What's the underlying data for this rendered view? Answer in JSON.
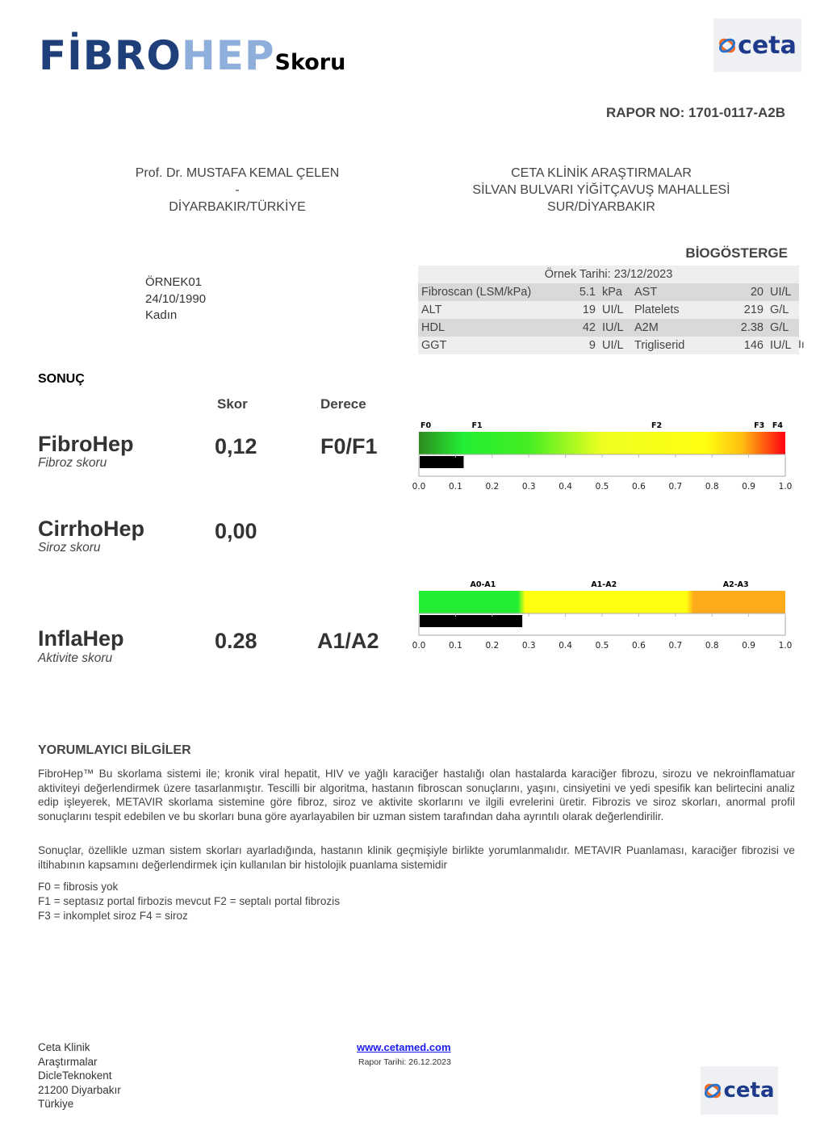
{
  "header": {
    "title_part1": "FİBRO",
    "title_part2": "HEP",
    "title_part3": "Skoru",
    "logo": "ceta",
    "report_no": "RAPOR NO: 1701-0117-A2B"
  },
  "doctor": {
    "name": "Prof. Dr. MUSTAFA KEMAL ÇELEN",
    "dash": "-",
    "location": "DİYARBAKIR/TÜRKİYE"
  },
  "clinic": {
    "line1": "CETA KLİNİK ARAŞTIRMALAR",
    "line2": "SİLVAN BULVARI YİĞİTÇAVUŞ MAHALLESİ",
    "line3": "SUR/DİYARBAKIR"
  },
  "patient": {
    "id": "ÖRNEK01",
    "dob": "24/10/1990",
    "sex": "Kadın"
  },
  "biomarkers": {
    "title": "BİOGÖSTERGE",
    "sample_date": "Örnek Tarihi: 23/12/2023",
    "stray": "Iı",
    "rows": [
      {
        "n1": "Fibroscan (LSM/kPa)",
        "v1": "5.1",
        "u1": "kPa",
        "n2": "AST",
        "v2": "20",
        "u2": "UI/L"
      },
      {
        "n1": "ALT",
        "v1": "19",
        "u1": "UI/L",
        "n2": "Platelets",
        "v2": "219",
        "u2": "G/L"
      },
      {
        "n1": "HDL",
        "v1": "42",
        "u1": "IU/L",
        "n2": "A2M",
        "v2": "2.38",
        "u2": "G/L"
      },
      {
        "n1": "GGT",
        "v1": "9",
        "u1": "UI/L",
        "n2": "Trigliserid",
        "v2": "146",
        "u2": "IU/L"
      }
    ]
  },
  "results": {
    "title": "SONUÇ",
    "col_score": "Skor",
    "col_grade": "Derece",
    "items": [
      {
        "name": "FibroHep",
        "sub": "Fibroz skoru",
        "score": "0,12",
        "grade": "F0/F1"
      },
      {
        "name": "CirrhoHep",
        "sub": "Siroz skoru",
        "score": "0,00",
        "grade": ""
      },
      {
        "name": "InflaHep",
        "sub": "Aktivite skoru",
        "score": "0.28",
        "grade": "A1/A2"
      }
    ]
  },
  "gauges": [
    {
      "value": 0.12,
      "ticks": [
        "0.0",
        "0.1",
        "0.2",
        "0.3",
        "0.4",
        "0.5",
        "0.6",
        "0.7",
        "0.8",
        "0.9",
        "1.0"
      ],
      "labels": [
        {
          "t": "F0",
          "at": 0.0
        },
        {
          "t": "F1",
          "at": 0.14
        },
        {
          "t": "F2",
          "at": 0.63
        },
        {
          "t": "F3",
          "at": 0.91
        },
        {
          "t": "F4",
          "at": 0.96
        }
      ],
      "stops": [
        [
          0,
          "#2e8b20"
        ],
        [
          0.12,
          "#22ee33"
        ],
        [
          0.3,
          "#44ee22"
        ],
        [
          0.5,
          "#eeff20"
        ],
        [
          0.78,
          "#ffff10"
        ],
        [
          0.88,
          "#ffc010"
        ],
        [
          1,
          "#ff0010"
        ]
      ]
    },
    {
      "value": 0.28,
      "ticks": [
        "0.0",
        "0.1",
        "0.2",
        "0.3",
        "0.4",
        "0.5",
        "0.6",
        "0.7",
        "0.8",
        "0.9",
        "1.0"
      ],
      "labels": [
        {
          "t": "A0-A1",
          "at": 0.175
        },
        {
          "t": "A1-A2",
          "at": 0.505
        },
        {
          "t": "A2-A3",
          "at": 0.865
        }
      ],
      "stops": [
        [
          0,
          "#22ee33"
        ],
        [
          0.27,
          "#22ee33"
        ],
        [
          0.29,
          "#ffff10"
        ],
        [
          0.73,
          "#ffff10"
        ],
        [
          0.75,
          "#ffaa18"
        ],
        [
          1,
          "#ffaa18"
        ]
      ]
    }
  ],
  "info": {
    "title": "YORUMLAYICI BİLGİLER",
    "p1": "FibroHep™ Bu skorlama sistemi ile; kronik viral hepatit, HIV ve yağlı karaciğer hastalığı olan hastalarda karaciğer fibrozu, sirozu ve nekroinflamatuar aktiviteyi değerlendirmek üzere tasarlanmıştır. Tescilli bir algoritma, hastanın fibroscan sonuçlarını, yaşını, cinsiyetini ve yedi spesifik kan belirtecini analiz edip işleyerek, METAVIR skorlama sistemine göre fibroz, siroz ve aktivite skorlarını ve ilgili evrelerini üretir. Fibrozis ve siroz skorları, anormal profil sonuçlarını tespit edebilen ve bu skorları buna göre ayarlayabilen bir uzman sistem tarafından daha ayrıntılı olarak değerlendirilir.",
    "p2": "Sonuçlar, özellikle uzman sistem skorları ayarladığında, hastanın klinik geçmişiyle birlikte yorumlanmalıdır. METAVIR Puanlaması, karaciğer fibrozisi ve iltihabının kapsamını değerlendirmek için kullanılan bir histolojik puanlama sistemidir",
    "l1": "F0 = fibrosis yok",
    "l2": "F1 = septasız portal firbozis mevcut F2 = septalı portal fibrozis",
    "l3": "F3 = inkomplet siroz F4 = siroz"
  },
  "footer": {
    "a1": "Ceta Klinik",
    "a2": "Araştırmalar",
    "a3": "DicleTeknokent",
    "a4": "21200 Diyarbakır",
    "a5": "Türkiye",
    "url": "www.cetamed.com",
    "date": "Rapor Tarihi: 26.12.2023",
    "logo": "ceta"
  }
}
